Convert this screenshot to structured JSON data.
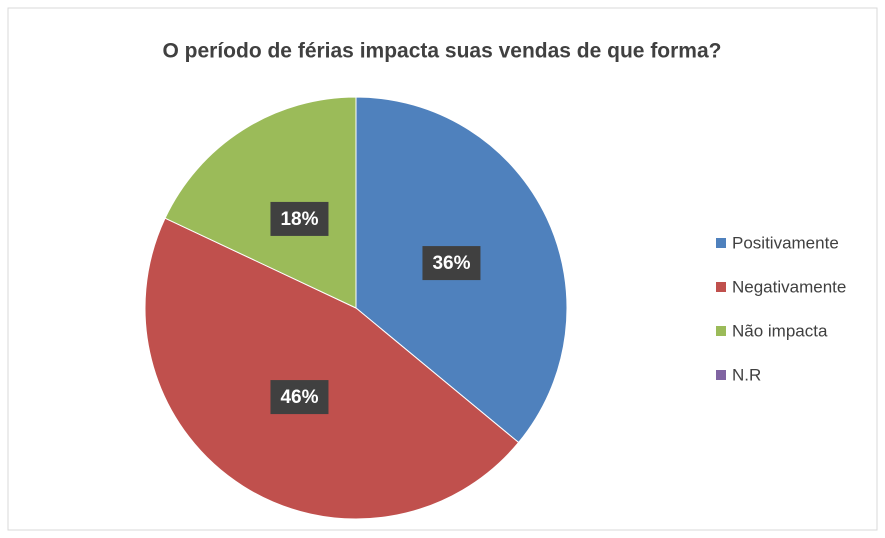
{
  "chart_data": {
    "type": "pie",
    "title": "O período de férias impacta suas vendas de que forma?",
    "categories": [
      "Positivamente",
      "Negativamente",
      "Não impacta",
      "N.R"
    ],
    "values": [
      36,
      46,
      18,
      0
    ],
    "value_labels": [
      "36%",
      "46%",
      "18%",
      null
    ],
    "colors": [
      "#4f81bd",
      "#c0504d",
      "#9bbb59",
      "#8064a2"
    ],
    "legend": "right"
  }
}
